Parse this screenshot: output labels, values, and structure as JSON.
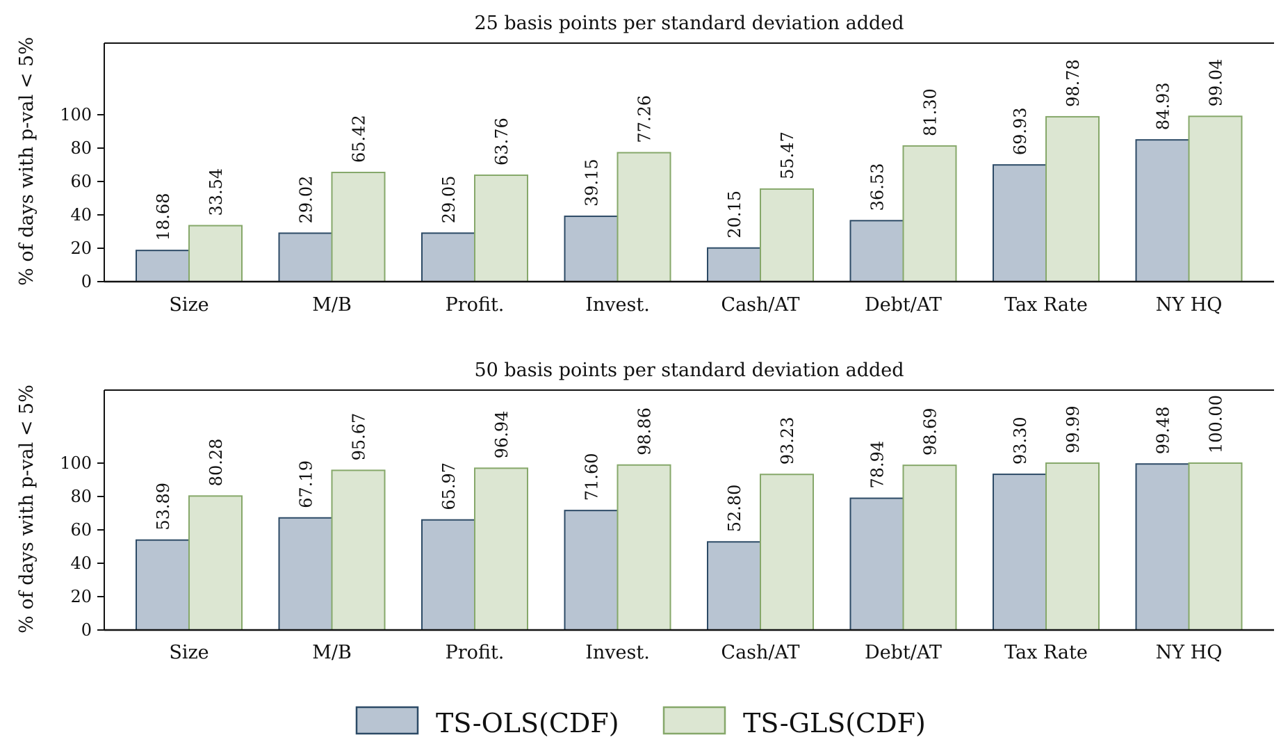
{
  "chart_data": [
    {
      "type": "bar",
      "title": "25 basis points per standard deviation added",
      "ylabel": "% of days with p-val < 5%",
      "xlabel": "",
      "ylim": [
        0,
        100
      ],
      "yticks": [
        "0",
        "20",
        "40",
        "60",
        "80",
        "100"
      ],
      "categories": [
        "Size",
        "M/B",
        "Profit.",
        "Invest.",
        "Cash/AT",
        "Debt/AT",
        "Tax Rate",
        "NY HQ"
      ],
      "series": [
        {
          "name": "TS-OLS(CDF)",
          "values": [
            18.68,
            29.02,
            29.05,
            39.15,
            20.15,
            36.53,
            69.93,
            84.93
          ],
          "labels": [
            "18.68",
            "29.02",
            "29.05",
            "39.15",
            "20.15",
            "36.53",
            "69.93",
            "84.93"
          ]
        },
        {
          "name": "TS-GLS(CDF)",
          "values": [
            33.54,
            65.42,
            63.76,
            77.26,
            55.47,
            81.3,
            98.78,
            99.04
          ],
          "labels": [
            "33.54",
            "65.42",
            "63.76",
            "77.26",
            "55.47",
            "81.30",
            "98.78",
            "99.04"
          ]
        }
      ]
    },
    {
      "type": "bar",
      "title": "50 basis points per standard deviation added",
      "ylabel": "% of days with p-val < 5%",
      "xlabel": "",
      "ylim": [
        0,
        100
      ],
      "yticks": [
        "0",
        "20",
        "40",
        "60",
        "80",
        "100"
      ],
      "categories": [
        "Size",
        "M/B",
        "Profit.",
        "Invest.",
        "Cash/AT",
        "Debt/AT",
        "Tax Rate",
        "NY HQ"
      ],
      "series": [
        {
          "name": "TS-OLS(CDF)",
          "values": [
            53.89,
            67.19,
            65.97,
            71.6,
            52.8,
            78.94,
            93.3,
            99.48
          ],
          "labels": [
            "53.89",
            "67.19",
            "65.97",
            "71.60",
            "52.80",
            "78.94",
            "93.30",
            "99.48"
          ]
        },
        {
          "name": "TS-GLS(CDF)",
          "values": [
            80.28,
            95.67,
            96.94,
            98.86,
            93.23,
            98.69,
            99.99,
            100.0
          ],
          "labels": [
            "80.28",
            "95.67",
            "96.94",
            "98.86",
            "93.23",
            "98.69",
            "99.99",
            "100.00"
          ]
        }
      ]
    }
  ],
  "legend": {
    "placement": "bottom",
    "items": [
      {
        "label": "TS-OLS(CDF)",
        "fill": "#b8c4d2",
        "stroke": "#2c4a66"
      },
      {
        "label": "TS-GLS(CDF)",
        "fill": "#dce6d2",
        "stroke": "#86a86a"
      }
    ]
  },
  "colors": {
    "ols_fill": "#b8c4d2",
    "ols_stroke": "#2c4a66",
    "gls_fill": "#dce6d2",
    "gls_stroke": "#86a86a",
    "axis": "#111111"
  }
}
